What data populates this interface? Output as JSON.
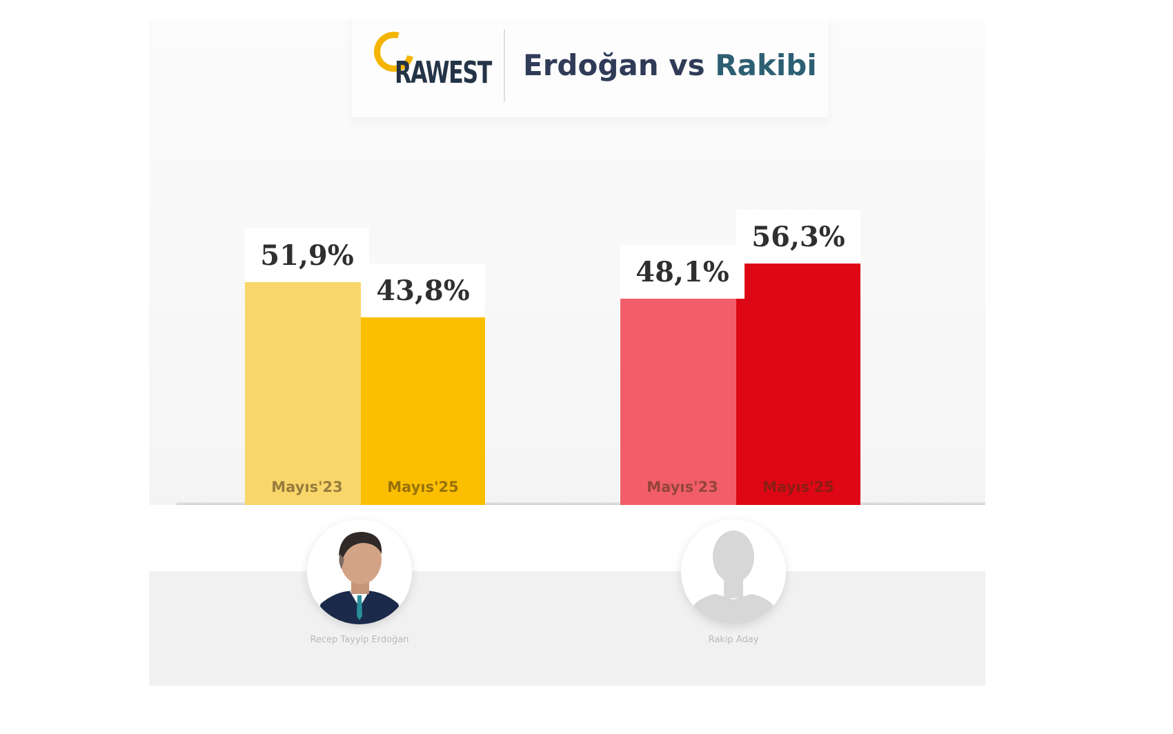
{
  "header": {
    "logo_text": "RAWEST",
    "title_part1": "Erdoğan",
    "title_part2": "vs",
    "title_part3": "Rakibi"
  },
  "chart_data": {
    "type": "bar",
    "title": "Erdoğan vs Rakibi",
    "ylim": [
      0,
      65
    ],
    "groups": [
      {
        "candidate": "Recep Tayyip Erdoğan",
        "bars": [
          {
            "category": "Mayıs'23",
            "value": 51.9,
            "label": "51,9%",
            "color": "#f9d66a"
          },
          {
            "category": "Mayıs'25",
            "value": 43.8,
            "label": "43,8%",
            "color": "#fcbf00"
          }
        ]
      },
      {
        "candidate": "Rakip Aday",
        "bars": [
          {
            "category": "Mayıs'23",
            "value": 48.1,
            "label": "48,1%",
            "color": "#f15e69"
          },
          {
            "category": "Mayıs'25",
            "value": 56.3,
            "label": "56,3%",
            "color": "#de0715"
          }
        ]
      }
    ],
    "xlabel": "",
    "ylabel": "",
    "grid": false,
    "legend": "none"
  }
}
